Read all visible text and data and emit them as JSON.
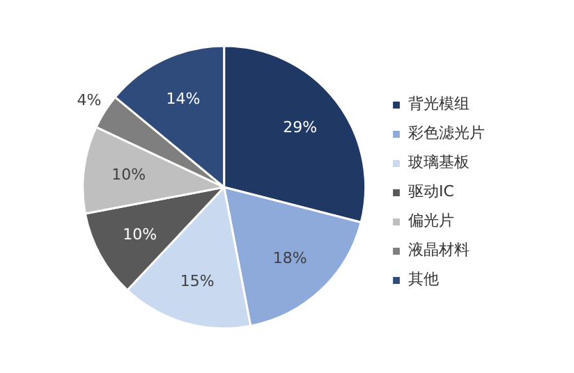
{
  "chart_data": {
    "type": "pie",
    "categories": [
      "背光模组",
      "彩色滤光片",
      "玻璃基板",
      "驱动IC",
      "偏光片",
      "液晶材料",
      "其他"
    ],
    "values": [
      29,
      18,
      15,
      10,
      10,
      4,
      14
    ],
    "value_labels": [
      "29%",
      "18%",
      "15%",
      "10%",
      "10%",
      "4%",
      "14%"
    ],
    "colors": [
      "#1f3864",
      "#8eaadb",
      "#c9d9f0",
      "#595959",
      "#bfbfbf",
      "#7f7f7f",
      "#2f4b7c"
    ],
    "legend": "right"
  }
}
